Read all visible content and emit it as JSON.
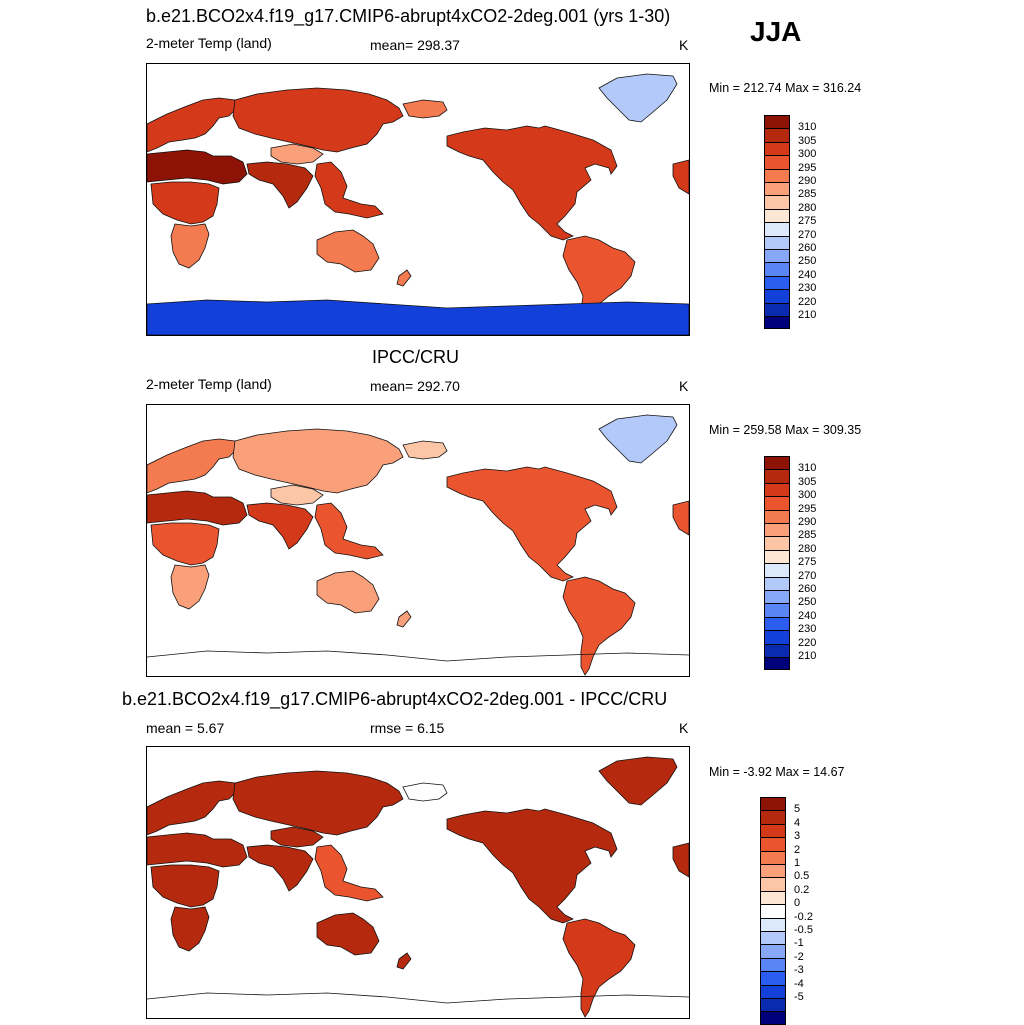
{
  "season": "JJA",
  "palette": {
    "abs": [
      "#00007a",
      "#0a2ab0",
      "#1240d8",
      "#2b5ef0",
      "#5a85f4",
      "#86a8f7",
      "#b2c9fa",
      "#dce8fc",
      "#fde7d4",
      "#fcc6a6",
      "#f9a07a",
      "#f47a4f",
      "#ea5530",
      "#d43a1a",
      "#b52a0e",
      "#8c1306"
    ],
    "diff": [
      "#00007a",
      "#0a2ab0",
      "#1240d8",
      "#2b5ef0",
      "#5a85f4",
      "#86a8f7",
      "#b2c9fa",
      "#dce8fc",
      "#ffffff",
      "#fde7d4",
      "#fcc6a6",
      "#f9a07a",
      "#f47a4f",
      "#ea5530",
      "#d43a1a",
      "#b52a0e",
      "#8c1306"
    ]
  },
  "panels": [
    {
      "title": "b.e21.BCO2x4.f19_g17.CMIP6-abrupt4xCO2-2deg.001 (yrs 1-30)",
      "left_label": "2-meter Temp (land)",
      "center_label": "mean= 298.37",
      "units": "K",
      "minmax": "Min = 212.74 Max = 316.24"
    },
    {
      "title": "IPCC/CRU",
      "left_label": "2-meter Temp (land)",
      "center_label": "mean= 292.70",
      "units": "K",
      "minmax": "Min = 259.58 Max = 309.35"
    },
    {
      "title": "b.e21.BCO2x4.f19_g17.CMIP6-abrupt4xCO2-2deg.001 - IPCC/CRU",
      "left_label": "mean =   5.67",
      "center_label": "rmse =   6.15",
      "units": "K",
      "minmax": "Min =  -3.92 Max =  14.67"
    }
  ],
  "chart_data": [
    {
      "type": "heatmap",
      "title": "b.e21.BCO2x4.f19_g17.CMIP6-abrupt4xCO2-2deg.001 (yrs 1-30)",
      "variable": "2-meter Temp (land)",
      "units": "K",
      "mean": 298.37,
      "min": 212.74,
      "max": 316.24,
      "colorbar_levels": [
        210,
        220,
        230,
        240,
        250,
        260,
        270,
        275,
        280,
        285,
        290,
        295,
        300,
        305,
        310
      ],
      "projection": "global, centered on Pacific",
      "regions": [
        {
          "region": "Antarctica",
          "value": 228
        },
        {
          "region": "Greenland",
          "value": 268
        },
        {
          "region": "Arctic coast",
          "value": 290
        },
        {
          "region": "North America",
          "value": 304
        },
        {
          "region": "South America",
          "value": 299
        },
        {
          "region": "Europe",
          "value": 300
        },
        {
          "region": "Sahara / Arabia",
          "value": 312
        },
        {
          "region": "Central Africa",
          "value": 303
        },
        {
          "region": "Southern Africa",
          "value": 294
        },
        {
          "region": "Siberia",
          "value": 300
        },
        {
          "region": "Tibet",
          "value": 289
        },
        {
          "region": "South Asia",
          "value": 308
        },
        {
          "region": "Southeast Asia",
          "value": 302
        },
        {
          "region": "Australia",
          "value": 294
        }
      ]
    },
    {
      "type": "heatmap",
      "title": "IPCC/CRU",
      "variable": "2-meter Temp (land)",
      "units": "K",
      "mean": 292.7,
      "min": 259.58,
      "max": 309.35,
      "colorbar_levels": [
        210,
        220,
        230,
        240,
        250,
        260,
        270,
        275,
        280,
        285,
        290,
        295,
        300,
        305,
        310
      ],
      "projection": "global, centered on Pacific",
      "regions": [
        {
          "region": "Greenland",
          "value": 264
        },
        {
          "region": "Arctic coast",
          "value": 282
        },
        {
          "region": "North America",
          "value": 296
        },
        {
          "region": "South America",
          "value": 297
        },
        {
          "region": "Europe",
          "value": 292
        },
        {
          "region": "Sahara / Arabia",
          "value": 306
        },
        {
          "region": "Central Africa",
          "value": 298
        },
        {
          "region": "Southern Africa",
          "value": 288
        },
        {
          "region": "Siberia",
          "value": 289
        },
        {
          "region": "Tibet",
          "value": 281
        },
        {
          "region": "South Asia",
          "value": 303
        },
        {
          "region": "Southeast Asia",
          "value": 299
        },
        {
          "region": "Australia",
          "value": 287
        }
      ]
    },
    {
      "type": "heatmap",
      "title": "b.e21.BCO2x4.f19_g17.CMIP6-abrupt4xCO2-2deg.001 - IPCC/CRU",
      "units": "K",
      "mean": 5.67,
      "rmse": 6.15,
      "min": -3.92,
      "max": 14.67,
      "colorbar_levels": [
        -5,
        -4,
        -3,
        -2,
        -1,
        -0.5,
        -0.2,
        0,
        0.2,
        0.5,
        1,
        2,
        3,
        4,
        5
      ],
      "projection": "global, centered on Pacific",
      "regions": [
        {
          "region": "Greenland",
          "value": 5
        },
        {
          "region": "North America",
          "value": 6
        },
        {
          "region": "South America",
          "value": 4
        },
        {
          "region": "Europe",
          "value": 7
        },
        {
          "region": "Sahara / Arabia",
          "value": 6
        },
        {
          "region": "Central Africa",
          "value": 5
        },
        {
          "region": "Southern Africa",
          "value": 5
        },
        {
          "region": "Siberia",
          "value": 8
        },
        {
          "region": "Tibet",
          "value": 6
        },
        {
          "region": "South Asia",
          "value": 5
        },
        {
          "region": "Southeast Asia",
          "value": 3
        },
        {
          "region": "Australia",
          "value": 5
        }
      ]
    }
  ]
}
